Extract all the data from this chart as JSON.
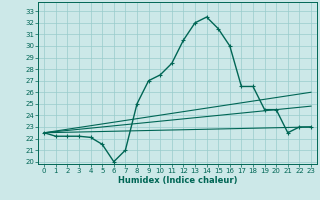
{
  "xlabel": "Humidex (Indice chaleur)",
  "bg_color": "#cce8e8",
  "grid_color": "#99cccc",
  "line_color": "#006655",
  "xlim": [
    -0.5,
    23.5
  ],
  "ylim": [
    19.8,
    33.8
  ],
  "yticks": [
    20,
    21,
    22,
    23,
    24,
    25,
    26,
    27,
    28,
    29,
    30,
    31,
    32,
    33
  ],
  "xticks": [
    0,
    1,
    2,
    3,
    4,
    5,
    6,
    7,
    8,
    9,
    10,
    11,
    12,
    13,
    14,
    15,
    16,
    17,
    18,
    19,
    20,
    21,
    22,
    23
  ],
  "main_x": [
    0,
    1,
    2,
    3,
    4,
    5,
    6,
    7,
    8,
    9,
    10,
    11,
    12,
    13,
    14,
    15,
    16,
    17,
    18,
    19,
    20,
    21,
    22,
    23
  ],
  "main_y": [
    22.5,
    22.2,
    22.2,
    22.2,
    22.1,
    21.5,
    20.0,
    21.0,
    25.0,
    27.0,
    27.5,
    28.5,
    30.5,
    32.0,
    32.5,
    31.5,
    30.0,
    26.5,
    26.5,
    24.5,
    24.5,
    22.5,
    23.0,
    23.0
  ],
  "trend1_x": [
    0,
    23
  ],
  "trend1_y": [
    22.5,
    23.0
  ],
  "trend2_x": [
    0,
    23
  ],
  "trend2_y": [
    22.5,
    24.8
  ],
  "trend3_x": [
    0,
    23
  ],
  "trend3_y": [
    22.5,
    26.0
  ]
}
